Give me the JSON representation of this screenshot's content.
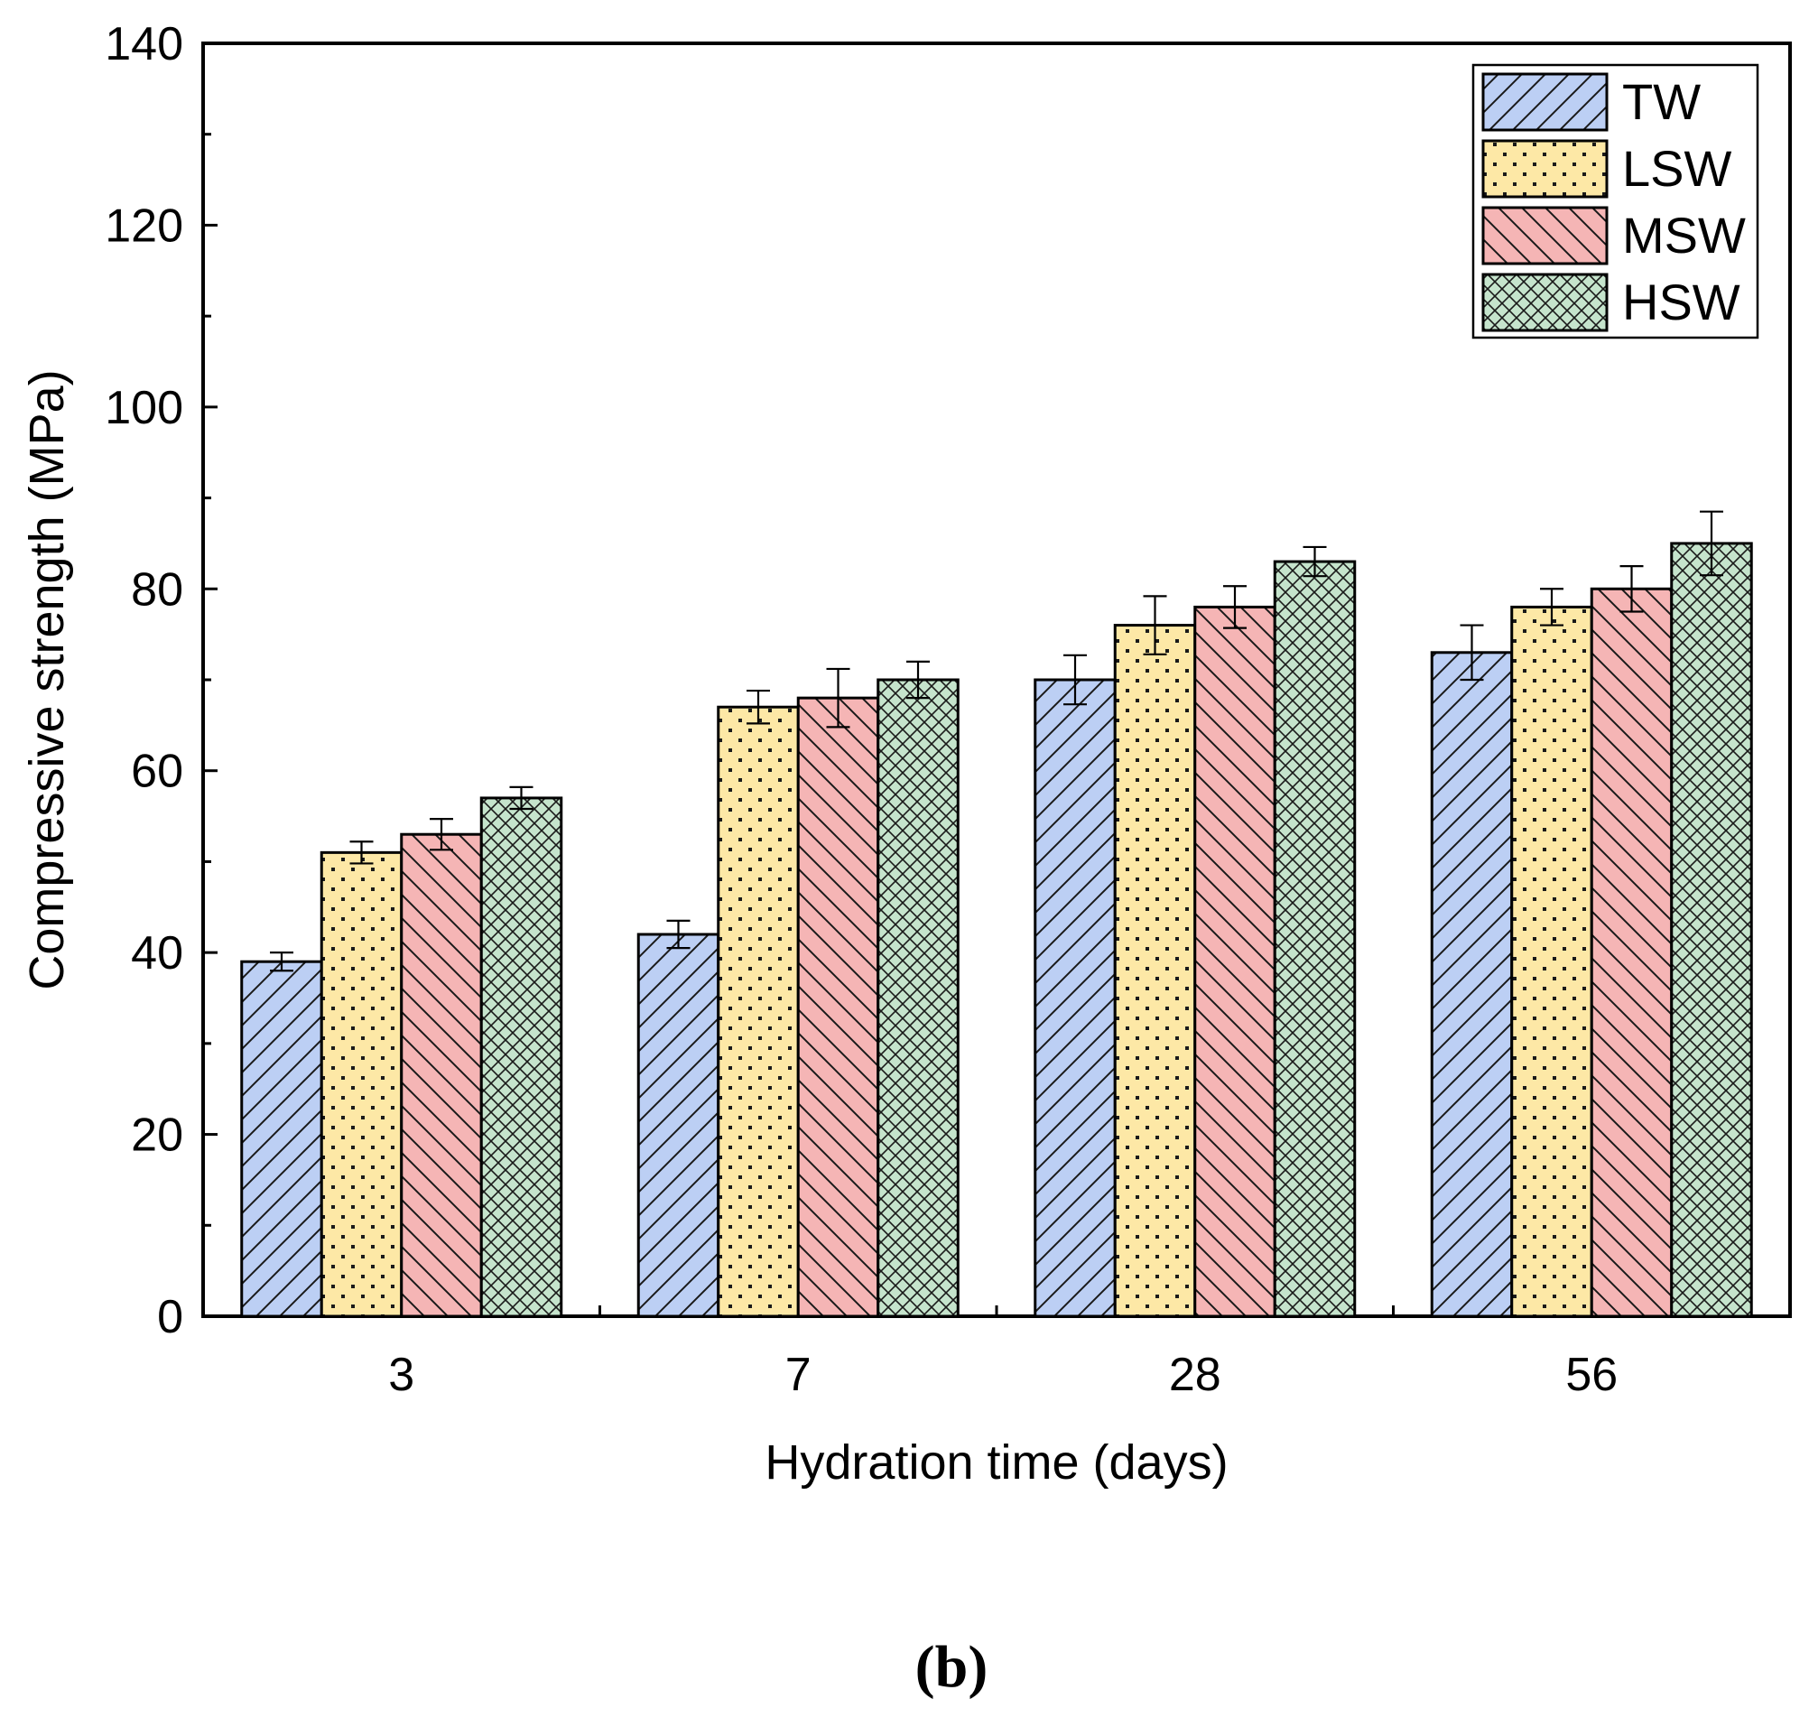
{
  "chart_data": {
    "type": "bar",
    "title": "",
    "xlabel": "Hydration time (days)",
    "ylabel": "Compressive strength (MPa)",
    "ylim": [
      0,
      140
    ],
    "yticks": [
      0,
      20,
      40,
      60,
      80,
      100,
      120,
      140
    ],
    "categories": [
      "3",
      "7",
      "28",
      "56"
    ],
    "series": [
      {
        "name": "TW",
        "values": [
          39,
          42,
          70,
          73
        ],
        "errors": [
          1.0,
          1.5,
          2.7,
          3.0
        ],
        "color": "#bccff4",
        "pattern": "diagonal-forward"
      },
      {
        "name": "LSW",
        "values": [
          51,
          67,
          76,
          78
        ],
        "errors": [
          1.2,
          1.8,
          3.2,
          2.0
        ],
        "color": "#fde8a6",
        "pattern": "dots"
      },
      {
        "name": "MSW",
        "values": [
          53,
          68,
          78,
          80
        ],
        "errors": [
          1.7,
          3.2,
          2.3,
          2.5
        ],
        "color": "#f5b5b5",
        "pattern": "diagonal-back"
      },
      {
        "name": "HSW",
        "values": [
          57,
          70,
          83,
          85
        ],
        "errors": [
          1.2,
          2.0,
          1.6,
          3.5
        ],
        "color": "#c5e4cc",
        "pattern": "crosshatch"
      }
    ],
    "legend_position": "top-right",
    "grid": false
  },
  "caption": {
    "text": "(b)"
  }
}
